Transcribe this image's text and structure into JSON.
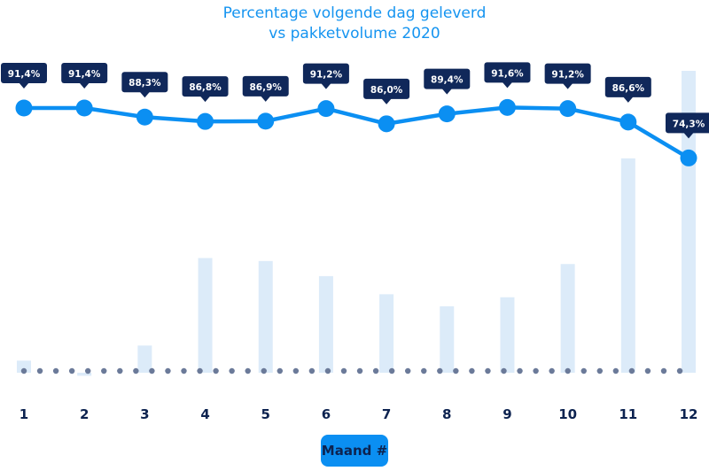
{
  "chart_data": {
    "type": "line+bar",
    "title": "Percentage volgende dag geleverd",
    "subtitle": "vs pakketvolume 2020",
    "xlabel": "Maand #",
    "categories": [
      "1",
      "2",
      "3",
      "4",
      "5",
      "6",
      "7",
      "8",
      "9",
      "10",
      "11",
      "12"
    ],
    "series": [
      {
        "type": "line",
        "values": [
          91.4,
          91.4,
          88.3,
          86.8,
          86.9,
          91.2,
          86.0,
          89.4,
          91.6,
          91.2,
          86.6,
          74.3
        ],
        "labels": [
          "91,4%",
          "91,4%",
          "88,3%",
          "86,8%",
          "86,9%",
          "91,2%",
          "86,0%",
          "89,4%",
          "91,6%",
          "91,2%",
          "86,6%",
          "74,3%"
        ]
      },
      {
        "type": "bar",
        "relative_values": [
          4,
          -1,
          9,
          38,
          37,
          32,
          26,
          22,
          25,
          36,
          71,
          100
        ]
      }
    ],
    "grid": false,
    "colors": {
      "line": "#0b8ff2",
      "bar": "#dcebf9",
      "label_bg": "#10285a",
      "axis_dots": "#6b7a99",
      "title": "#1594f0"
    }
  }
}
